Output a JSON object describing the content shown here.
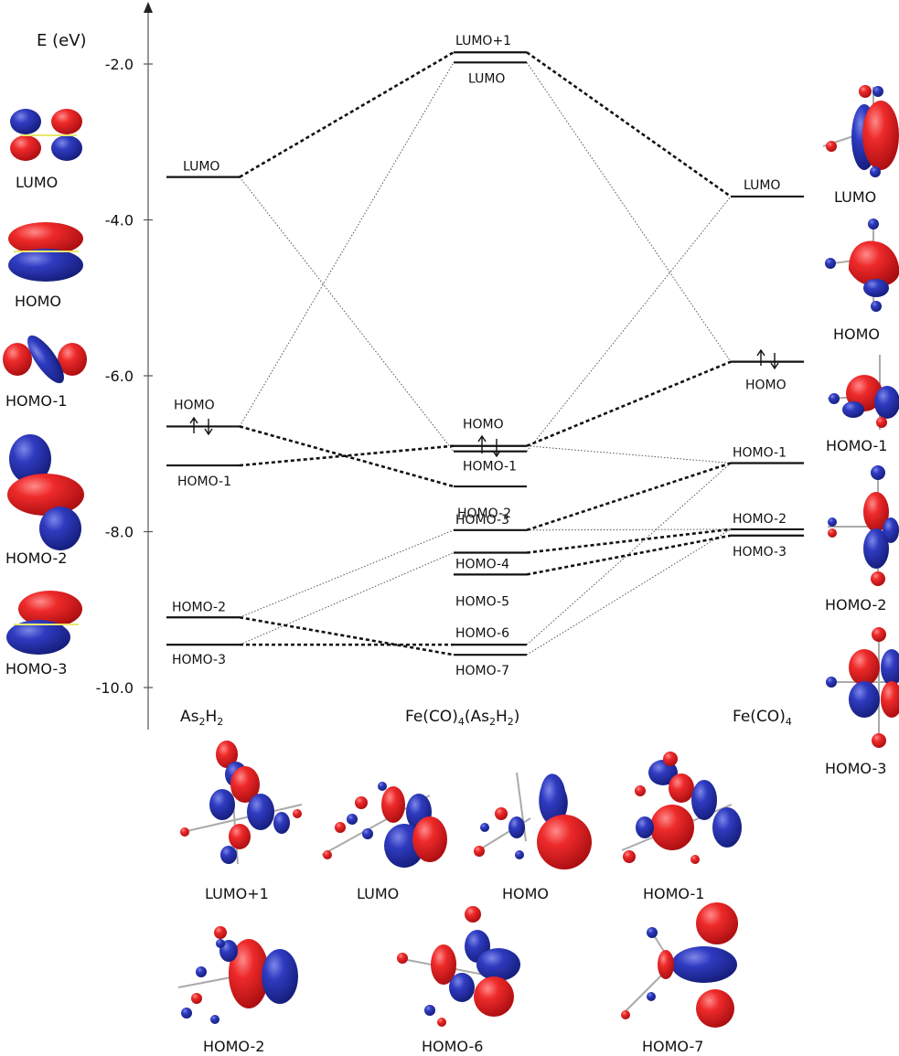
{
  "axis": {
    "title": "E (eV)",
    "ticks": [
      -2.0,
      -4.0,
      -6.0,
      -8.0,
      -10.0
    ],
    "tick_labels": [
      "-2.0",
      "-4.0",
      "-6.0",
      "-8.0",
      "-10.0"
    ],
    "range": [
      -10.5,
      -0.5
    ]
  },
  "species": {
    "left": {
      "label": "As₂H₂"
    },
    "middle": {
      "label": "Fe(CO)₄(As₂H₂)"
    },
    "right": {
      "label": "Fe(CO)₄"
    }
  },
  "levels": {
    "left": [
      {
        "label": "LUMO",
        "energy": -3.45
      },
      {
        "label": "HOMO",
        "energy": -6.65
      },
      {
        "label": "HOMO-1",
        "energy": -7.15
      },
      {
        "label": "HOMO-2",
        "energy": -9.1
      },
      {
        "label": "HOMO-3",
        "energy": -9.45
      }
    ],
    "middle": [
      {
        "label": "LUMO+1",
        "energy": -1.85
      },
      {
        "label": "LUMO",
        "energy": -1.98
      },
      {
        "label": "HOMO",
        "energy": -6.9
      },
      {
        "label": "HOMO-1",
        "energy": -6.97
      },
      {
        "label": "HOMO-2",
        "energy": -7.42
      },
      {
        "label": "HOMO-3",
        "energy": -7.98
      },
      {
        "label": "HOMO-4",
        "energy": -8.27
      },
      {
        "label": "HOMO-5",
        "energy": -8.55
      },
      {
        "label": "HOMO-6",
        "energy": -9.45
      },
      {
        "label": "HOMO-7",
        "energy": -9.58
      }
    ],
    "right": [
      {
        "label": "LUMO",
        "energy": -3.7
      },
      {
        "label": "HOMO",
        "energy": -5.82
      },
      {
        "label": "HOMO-1",
        "energy": -7.12
      },
      {
        "label": "HOMO-2",
        "energy": -7.97
      },
      {
        "label": "HOMO-3",
        "energy": -8.05
      }
    ]
  },
  "orbital_images": {
    "left": [
      "LUMO",
      "HOMO",
      "HOMO-1",
      "HOMO-2",
      "HOMO-3"
    ],
    "right": [
      "LUMO",
      "HOMO",
      "HOMO-1",
      "HOMO-2",
      "HOMO-3"
    ],
    "bottom_row1": [
      "LUMO+1",
      "LUMO",
      "HOMO",
      "HOMO-1"
    ],
    "bottom_row2": [
      "HOMO-2",
      "HOMO-6",
      "HOMO-7"
    ]
  },
  "colors": {
    "lobe_positive": "#e8141c",
    "lobe_negative": "#2a35b0",
    "level_line": "#111111"
  }
}
